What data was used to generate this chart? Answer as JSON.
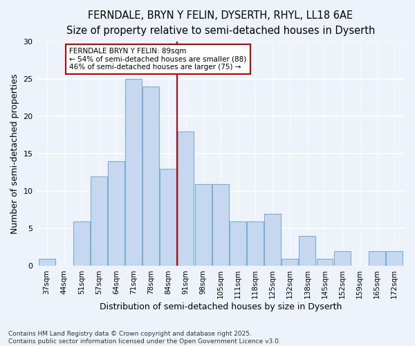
{
  "title1": "FERNDALE, BRYN Y FELIN, DYSERTH, RHYL, LL18 6AE",
  "title2": "Size of property relative to semi-detached houses in Dyserth",
  "xlabel": "Distribution of semi-detached houses by size in Dyserth",
  "ylabel": "Number of semi-detached properties",
  "categories": [
    "37sqm",
    "44sqm",
    "51sqm",
    "57sqm",
    "64sqm",
    "71sqm",
    "78sqm",
    "84sqm",
    "91sqm",
    "98sqm",
    "105sqm",
    "111sqm",
    "118sqm",
    "125sqm",
    "132sqm",
    "138sqm",
    "145sqm",
    "152sqm",
    "159sqm",
    "165sqm",
    "172sqm"
  ],
  "values": [
    1,
    0,
    6,
    12,
    14,
    25,
    24,
    13,
    18,
    11,
    11,
    6,
    6,
    7,
    1,
    4,
    1,
    2,
    0,
    2,
    2
  ],
  "bar_color": "#c5d8f0",
  "bar_edge_color": "#7aadce",
  "vline_color": "#cc0000",
  "annotation_title": "FERNDALE BRYN Y FELIN: 89sqm",
  "annotation_line1": "← 54% of semi-detached houses are smaller (88)",
  "annotation_line2": "46% of semi-detached houses are larger (75) →",
  "footnote": "Contains HM Land Registry data © Crown copyright and database right 2025.\nContains public sector information licensed under the Open Government Licence v3.0.",
  "ylim": [
    0,
    30
  ],
  "yticks": [
    0,
    5,
    10,
    15,
    20,
    25,
    30
  ],
  "bg_color": "#eef2fb",
  "grid_color": "#ffffff",
  "title_fontsize": 10.5,
  "subtitle_fontsize": 9.5,
  "axis_label_fontsize": 9,
  "tick_fontsize": 7.5,
  "annotation_fontsize": 7.5,
  "annotation_box_color": "#ffffff",
  "annotation_box_edge": "#cc0000",
  "footnote_fontsize": 6.5
}
